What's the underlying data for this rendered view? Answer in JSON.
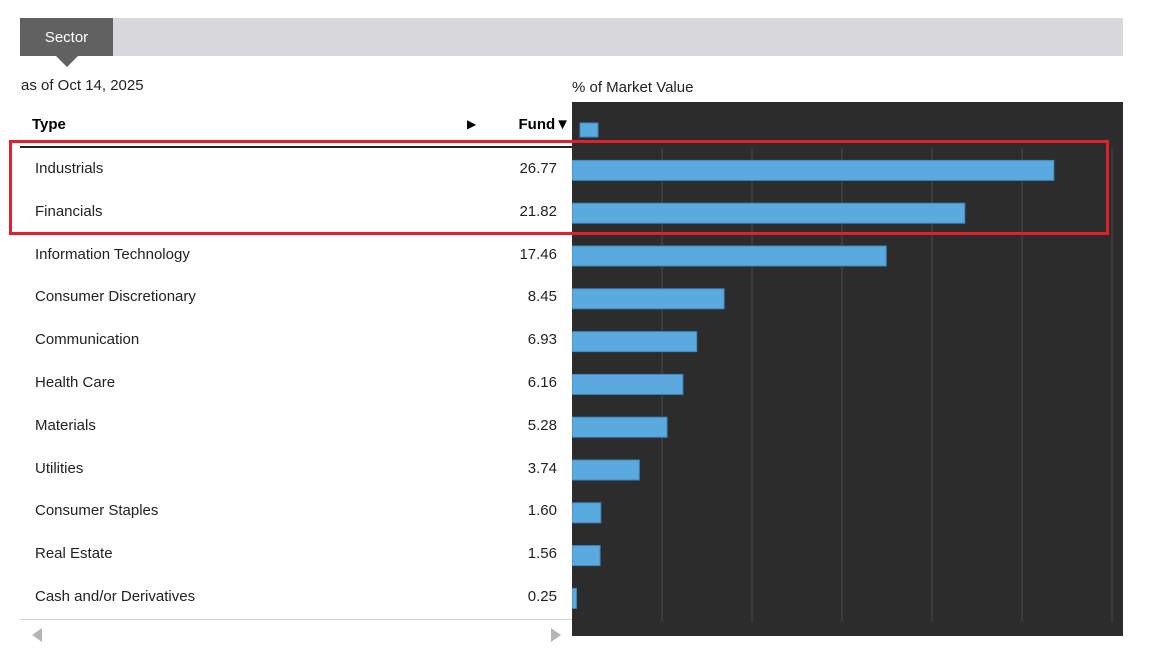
{
  "tab": {
    "label": "Sector"
  },
  "as_of": "as of Oct 14, 2025",
  "chart_label": "% of Market Value",
  "table": {
    "headers": {
      "type": "Type",
      "expand_arrow": "▶",
      "fund": "Fund▼"
    },
    "rows": [
      {
        "name": "Industrials",
        "value": "26.77"
      },
      {
        "name": "Financials",
        "value": "21.82"
      },
      {
        "name": "Information Technology",
        "value": "17.46"
      },
      {
        "name": "Consumer Discretionary",
        "value": "8.45"
      },
      {
        "name": "Communication",
        "value": "6.93"
      },
      {
        "name": "Health Care",
        "value": "6.16"
      },
      {
        "name": "Materials",
        "value": "5.28"
      },
      {
        "name": "Utilities",
        "value": "3.74"
      },
      {
        "name": "Consumer Staples",
        "value": "1.60"
      },
      {
        "name": "Real Estate",
        "value": "1.56"
      },
      {
        "name": "Cash and/or Derivatives",
        "value": "0.25"
      }
    ]
  },
  "chart_data": {
    "type": "bar",
    "orientation": "horizontal",
    "categories": [
      "Industrials",
      "Financials",
      "Information Technology",
      "Consumer Discretionary",
      "Communication",
      "Health Care",
      "Materials",
      "Utilities",
      "Consumer Staples",
      "Real Estate",
      "Cash and/or Derivatives"
    ],
    "values": [
      26.77,
      21.82,
      17.46,
      8.45,
      6.93,
      6.16,
      5.28,
      3.74,
      1.6,
      1.56,
      0.25
    ],
    "xlim": [
      0,
      30
    ],
    "grid": true,
    "header_bar_value": 1,
    "colors": {
      "bar": "#5aaae0",
      "background": "#2c2c2c",
      "grid": "#4a4a4a"
    }
  },
  "highlight": {
    "color": "#e0212b",
    "rows": [
      "Industrials",
      "Financials"
    ]
  }
}
